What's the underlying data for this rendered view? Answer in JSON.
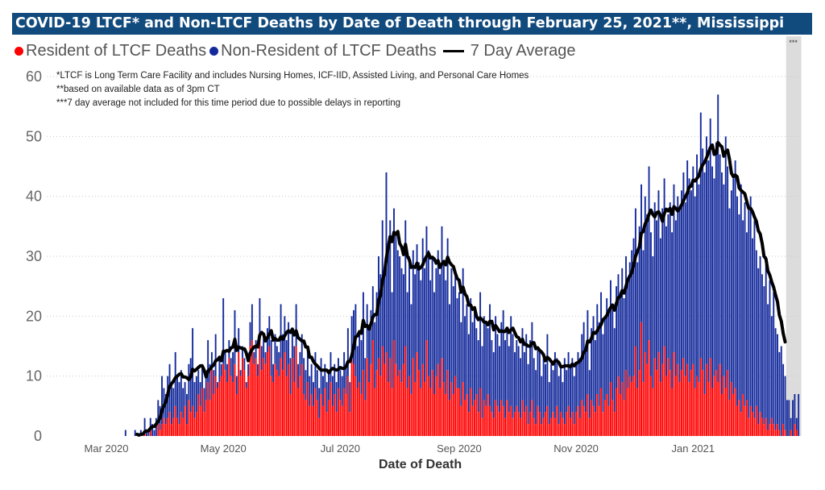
{
  "title": "COVID-19 LTCF* and Non-LTCF Deaths by Date of Death through February 25, 2021**, Mississippi",
  "notes": [
    "*LTCF is Long Term Care Facility and includes Nursing Homes, ICF-IID, Assisted Living, and Personal Care Homes",
    "**based on available data as of 3pm CT",
    "***7 day average not included for this time period due to possible delays in reporting"
  ],
  "excluded_period_marker": "***",
  "colors": {
    "title_bg": "#114a7d",
    "resident": "#ff0000",
    "non_resident": "#142a9c",
    "average": "#000000",
    "excluded_band": "#dcdcdc"
  },
  "chart_data": {
    "type": "bar",
    "stacked": true,
    "xlabel": "Date of Death",
    "ylabel": "",
    "ylim": [
      0,
      60
    ],
    "yticks": [
      "0",
      "10",
      "20",
      "30",
      "40",
      "50",
      "60"
    ],
    "xticks": [
      {
        "label": "Mar 2020",
        "date": "2020-03-01"
      },
      {
        "label": "May 2020",
        "date": "2020-05-01"
      },
      {
        "label": "Jul 2020",
        "date": "2020-07-01"
      },
      {
        "label": "Sep 2020",
        "date": "2020-09-01"
      },
      {
        "label": "Nov 2020",
        "date": "2020-11-01"
      },
      {
        "label": "Jan 2021",
        "date": "2021-01-01"
      }
    ],
    "xlim": [
      "2020-03-01",
      "2021-02-25"
    ],
    "grid": "horizontal dotted",
    "legend": "top-left",
    "legend_entries": [
      "Resident of LTCF Deaths",
      "Non-Resident of LTCF Deaths",
      "7 Day Average"
    ],
    "first_date": "2020-03-11",
    "frequency": "daily",
    "average_excluded_days": 7,
    "total_deaths": [
      1,
      0,
      0,
      0,
      0,
      1,
      0,
      0,
      1,
      0,
      3,
      1,
      1,
      3,
      2,
      1,
      3,
      6,
      5,
      10,
      8,
      7,
      10,
      12,
      9,
      8,
      14,
      10,
      9,
      11,
      8,
      9,
      7,
      12,
      13,
      18,
      9,
      10,
      11,
      9,
      12,
      8,
      10,
      16,
      12,
      14,
      11,
      17,
      9,
      13,
      12,
      23,
      14,
      12,
      16,
      13,
      14,
      21,
      10,
      18,
      11,
      15,
      13,
      9,
      12,
      19,
      22,
      14,
      16,
      12,
      23,
      15,
      17,
      14,
      18,
      20,
      16,
      12,
      17,
      15,
      14,
      22,
      17,
      20,
      16,
      19,
      13,
      18,
      15,
      22,
      12,
      14,
      17,
      13,
      11,
      15,
      10,
      12,
      9,
      14,
      11,
      8,
      13,
      10,
      12,
      9,
      11,
      14,
      10,
      12,
      9,
      13,
      11,
      10,
      14,
      12,
      18,
      9,
      20,
      21,
      22,
      15,
      17,
      16,
      24,
      13,
      22,
      18,
      21,
      25,
      19,
      24,
      30,
      27,
      36,
      28,
      44,
      32,
      36,
      24,
      38,
      34,
      31,
      30,
      28,
      27,
      36,
      24,
      30,
      22,
      31,
      27,
      32,
      29,
      26,
      33,
      28,
      35,
      31,
      26,
      30,
      24,
      28,
      31,
      27,
      35,
      29,
      26,
      33,
      22,
      28,
      25,
      27,
      23,
      24,
      19,
      28,
      20,
      22,
      17,
      23,
      19,
      21,
      18,
      16,
      24,
      15,
      20,
      19,
      18,
      22,
      16,
      14,
      20,
      17,
      15,
      19,
      21,
      16,
      18,
      15,
      20,
      17,
      14,
      16,
      15,
      13,
      18,
      14,
      17,
      12,
      16,
      19,
      13,
      11,
      15,
      14,
      10,
      13,
      12,
      17,
      9,
      12,
      11,
      14,
      13,
      10,
      12,
      9,
      13,
      11,
      14,
      12,
      13,
      10,
      12,
      14,
      13,
      17,
      19,
      15,
      21,
      11,
      18,
      20,
      16,
      22,
      19,
      24,
      17,
      20,
      23,
      21,
      26,
      22,
      18,
      25,
      27,
      24,
      28,
      23,
      30,
      26,
      29,
      31,
      33,
      38,
      29,
      35,
      42,
      31,
      40,
      37,
      45,
      34,
      30,
      39,
      36,
      41,
      33,
      38,
      43,
      35,
      37,
      39,
      34,
      42,
      36,
      40,
      38,
      41,
      44,
      39,
      46,
      43,
      41,
      45,
      40,
      47,
      42,
      54,
      48,
      44,
      50,
      46,
      53,
      45,
      43,
      49,
      57,
      47,
      44,
      42,
      50,
      45,
      38,
      41,
      43,
      46,
      40,
      37,
      42,
      36,
      39,
      34,
      38,
      40,
      33,
      36,
      31,
      28,
      30,
      27,
      25,
      30,
      22,
      26,
      20,
      24,
      18,
      17,
      14,
      15,
      12,
      10,
      6,
      6,
      3,
      6,
      7,
      3,
      7
    ],
    "series": [
      {
        "name": "Resident of LTCF Deaths",
        "values": [
          0,
          0,
          0,
          0,
          0,
          0,
          0,
          0,
          0,
          0,
          1,
          0,
          0,
          1,
          0,
          0,
          0,
          2,
          1,
          2,
          3,
          2,
          3,
          4,
          2,
          3,
          5,
          3,
          2,
          4,
          3,
          5,
          2,
          6,
          4,
          5,
          3,
          4,
          7,
          5,
          8,
          4,
          6,
          9,
          6,
          11,
          7,
          10,
          8,
          9,
          10,
          12,
          11,
          9,
          13,
          10,
          9,
          12,
          7,
          14,
          10,
          13,
          11,
          8,
          10,
          15,
          16,
          12,
          13,
          10,
          17,
          11,
          13,
          12,
          14,
          15,
          10,
          9,
          12,
          11,
          10,
          13,
          11,
          14,
          10,
          12,
          7,
          13,
          9,
          15,
          8,
          10,
          12,
          7,
          6,
          9,
          5,
          7,
          5,
          8,
          6,
          3,
          7,
          5,
          8,
          4,
          6,
          9,
          5,
          7,
          4,
          8,
          6,
          5,
          8,
          7,
          10,
          4,
          14,
          12,
          10,
          8,
          9,
          7,
          11,
          6,
          13,
          9,
          12,
          16,
          8,
          11,
          13,
          10,
          15,
          12,
          14,
          9,
          13,
          8,
          16,
          12,
          10,
          11,
          9,
          12,
          15,
          8,
          10,
          7,
          13,
          9,
          14,
          11,
          8,
          12,
          9,
          16,
          10,
          8,
          11,
          7,
          10,
          12,
          8,
          13,
          9,
          7,
          11,
          6,
          9,
          7,
          10,
          8,
          8,
          5,
          9,
          6,
          7,
          4,
          8,
          5,
          6,
          7,
          4,
          8,
          3,
          6,
          5,
          7,
          5,
          4,
          3,
          6,
          5,
          4,
          6,
          5,
          3,
          6,
          4,
          5,
          3,
          4,
          5,
          4,
          3,
          6,
          4,
          5,
          2,
          4,
          6,
          3,
          2,
          5,
          4,
          2,
          3,
          4,
          5,
          2,
          3,
          4,
          3,
          5,
          2,
          4,
          3,
          2,
          4,
          5,
          3,
          4,
          2,
          4,
          5,
          3,
          6,
          5,
          4,
          7,
          3,
          6,
          5,
          4,
          7,
          5,
          8,
          4,
          6,
          7,
          5,
          9,
          6,
          4,
          8,
          10,
          7,
          9,
          6,
          11,
          8,
          10,
          9,
          10,
          15,
          8,
          11,
          19,
          9,
          14,
          12,
          16,
          10,
          8,
          13,
          11,
          14,
          9,
          12,
          15,
          10,
          13,
          11,
          8,
          14,
          10,
          12,
          9,
          11,
          13,
          10,
          12,
          9,
          11,
          12,
          8,
          10,
          9,
          13,
          11,
          7,
          12,
          9,
          13,
          8,
          10,
          11,
          9,
          12,
          7,
          10,
          8,
          11,
          6,
          9,
          7,
          8,
          5,
          6,
          4,
          7,
          5,
          6,
          3,
          5,
          4,
          3,
          5,
          2,
          4,
          3,
          2,
          3,
          1,
          2,
          3,
          2,
          1,
          2,
          1,
          0,
          2,
          1,
          0,
          0,
          1,
          0,
          2,
          1,
          0
        ]
      },
      {
        "name": "Non-Resident of LTCF Deaths",
        "values_rule": "total_deaths minus resident"
      }
    ]
  }
}
